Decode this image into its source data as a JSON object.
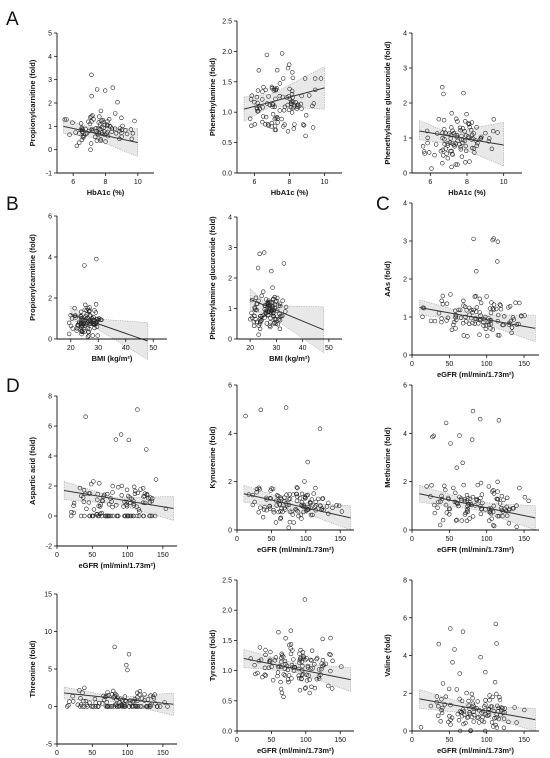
{
  "panel_letters": [
    "A",
    "B",
    "C",
    "D"
  ],
  "chart_data": [
    {
      "type": "scatter",
      "panel": "A",
      "xlabel": "HbA1c (%)",
      "ylabel": "Propionylcarnitine (fold)",
      "xlim": [
        5,
        11
      ],
      "ylim": [
        -1,
        5
      ],
      "xticks": [
        6,
        8,
        10
      ],
      "yticks": [
        -1,
        0,
        1,
        2,
        3,
        4,
        5
      ],
      "tick_labels_x": [
        "6",
        "8",
        "10"
      ],
      "tick_labels_y": [
        "-1",
        "0",
        "1",
        "2",
        "3",
        "4",
        "5"
      ],
      "fit": {
        "x": [
          5.4,
          10.0
        ],
        "y": [
          1.0,
          0.3
        ]
      },
      "band": {
        "x": [
          5.4,
          7,
          10
        ],
        "upper": [
          1.35,
          0.95,
          0.9
        ],
        "lower": [
          0.7,
          0.55,
          -0.3
        ]
      },
      "seed": 11,
      "n": 95,
      "x_range": [
        5.3,
        9.9
      ],
      "y_range": [
        0.0,
        4.3
      ],
      "y_center": 0.75,
      "y_spread": 0.6
    },
    {
      "type": "scatter",
      "panel": "A",
      "xlabel": "HbA1c (%)",
      "ylabel": "Phenethylamine (fold)",
      "xlim": [
        5,
        11
      ],
      "ylim": [
        0,
        2.5
      ],
      "xticks": [
        6,
        8,
        10
      ],
      "yticks": [
        0,
        0.5,
        1.0,
        1.5,
        2.0,
        2.5
      ],
      "tick_labels_x": [
        "6",
        "8",
        "10"
      ],
      "tick_labels_y": [
        "0.0",
        "0.5",
        "1.0",
        "1.5",
        "2.0",
        "2.5"
      ],
      "fit": {
        "x": [
          5.4,
          10.0
        ],
        "y": [
          1.05,
          1.4
        ]
      },
      "band": {
        "x": [
          5.4,
          7,
          10
        ],
        "upper": [
          1.25,
          1.3,
          1.75
        ],
        "lower": [
          0.85,
          1.1,
          1.05
        ]
      },
      "seed": 23,
      "n": 110,
      "x_range": [
        5.3,
        9.9
      ],
      "y_range": [
        0.05,
        2.0
      ],
      "y_center": 1.1,
      "y_spread": 0.45
    },
    {
      "type": "scatter",
      "panel": "A",
      "xlabel": "HbA1c (%)",
      "ylabel": "Phenethylamine glucuronide (fold)",
      "xlim": [
        5,
        11
      ],
      "ylim": [
        0,
        4
      ],
      "xticks": [
        6,
        8,
        10
      ],
      "yticks": [
        0,
        1,
        2,
        3,
        4
      ],
      "tick_labels_x": [
        "6",
        "8",
        "10"
      ],
      "tick_labels_y": [
        "0",
        "1",
        "2",
        "3",
        "4"
      ],
      "fit": {
        "x": [
          5.4,
          10.0
        ],
        "y": [
          1.2,
          0.8
        ]
      },
      "band": {
        "x": [
          5.4,
          7,
          10
        ],
        "upper": [
          1.5,
          1.15,
          1.45
        ],
        "lower": [
          0.95,
          0.85,
          0.2
        ]
      },
      "seed": 37,
      "n": 105,
      "x_range": [
        5.3,
        9.9
      ],
      "y_range": [
        0.1,
        3.5
      ],
      "y_center": 0.9,
      "y_spread": 0.6
    },
    {
      "type": "scatter",
      "panel": "B",
      "xlabel": "BMI (kg/m²)",
      "ylabel": "Propionylcarnitine (fold)",
      "xlim": [
        15,
        55
      ],
      "ylim": [
        0,
        6
      ],
      "xticks": [
        20,
        30,
        40,
        50
      ],
      "yticks": [
        0,
        2,
        4,
        6
      ],
      "tick_labels_x": [
        "20",
        "30",
        "40",
        "50"
      ],
      "tick_labels_y": [
        "0",
        "2",
        "4",
        "6"
      ],
      "fit": {
        "x": [
          20,
          48
        ],
        "y": [
          1.2,
          -0.1
        ]
      },
      "band": {
        "x": [
          20,
          27,
          48
        ],
        "upper": [
          1.6,
          1.0,
          0.8
        ],
        "lower": [
          0.9,
          0.7,
          -1.0
        ]
      },
      "seed": 41,
      "n": 100,
      "x_range": [
        19,
        32
      ],
      "y_range": [
        0.0,
        4.2
      ],
      "y_center": 0.8,
      "y_spread": 0.6
    },
    {
      "type": "scatter",
      "panel": "B",
      "xlabel": "BMI (kg/m²)",
      "ylabel": "Phenethylamine glucuronide (fold)",
      "xlim": [
        15,
        55
      ],
      "ylim": [
        0,
        4
      ],
      "xticks": [
        20,
        30,
        40,
        50
      ],
      "yticks": [
        0,
        1,
        2,
        3,
        4
      ],
      "tick_labels_x": [
        "20",
        "30",
        "40",
        "50"
      ],
      "tick_labels_y": [
        "0",
        "1",
        "2",
        "3",
        "4"
      ],
      "fit": {
        "x": [
          20,
          48
        ],
        "y": [
          1.3,
          0.3
        ]
      },
      "band": {
        "x": [
          20,
          27,
          48
        ],
        "upper": [
          1.65,
          1.1,
          1.05
        ],
        "lower": [
          0.95,
          0.8,
          -0.45
        ]
      },
      "seed": 53,
      "n": 110,
      "x_range": [
        19,
        35
      ],
      "y_range": [
        0.1,
        3.4
      ],
      "y_center": 0.9,
      "y_spread": 0.6
    },
    {
      "type": "scatter",
      "panel": "C",
      "xlabel": "eGFR (ml/min/1.73m²)",
      "ylabel": "AAs (fold)",
      "xlim": [
        0,
        170
      ],
      "ylim": [
        0,
        4
      ],
      "xticks": [
        0,
        50,
        100,
        150
      ],
      "yticks": [
        0,
        1,
        2,
        3,
        4
      ],
      "tick_labels_x": [
        "0",
        "50",
        "100",
        "150"
      ],
      "tick_labels_y": [
        "0",
        "1",
        "2",
        "3",
        "4"
      ],
      "fit": {
        "x": [
          10,
          165
        ],
        "y": [
          1.25,
          0.7
        ]
      },
      "band": {
        "x": [
          10,
          85,
          165
        ],
        "upper": [
          1.45,
          1.05,
          1.05
        ],
        "lower": [
          1.05,
          0.9,
          0.35
        ]
      },
      "seed": 61,
      "n": 115,
      "x_range": [
        8,
        160
      ],
      "y_range": [
        0.15,
        3.2
      ],
      "y_center": 1.0,
      "y_spread": 0.5
    },
    {
      "type": "scatter",
      "panel": "D",
      "xlabel": "eGFR (ml/min/1.73m²)",
      "ylabel": "Aspartic acid (fold)",
      "xlim": [
        0,
        170
      ],
      "ylim": [
        -2,
        8
      ],
      "xticks": [
        0,
        50,
        100,
        150
      ],
      "yticks": [
        -2,
        0,
        2,
        4,
        6,
        8
      ],
      "tick_labels_x": [
        "0",
        "50",
        "100",
        "150"
      ],
      "tick_labels_y": [
        "-2",
        "0",
        "2",
        "4",
        "6",
        "8"
      ],
      "fit": {
        "x": [
          10,
          165
        ],
        "y": [
          1.7,
          0.5
        ]
      },
      "band": {
        "x": [
          10,
          85,
          165
        ],
        "upper": [
          2.3,
          1.2,
          1.3
        ],
        "lower": [
          1.1,
          0.8,
          -0.3
        ]
      },
      "seed": 71,
      "n": 125,
      "x_range": [
        8,
        160
      ],
      "y_range": [
        0.0,
        7.4
      ],
      "y_center": 0.9,
      "y_spread": 1.2,
      "zero_fraction": 0.3
    },
    {
      "type": "scatter",
      "panel": "D",
      "xlabel": "eGFR (ml/min/1.73m²)",
      "ylabel": "Kynurenine (fold)",
      "xlim": [
        0,
        170
      ],
      "ylim": [
        0,
        6
      ],
      "xticks": [
        0,
        50,
        100,
        150
      ],
      "yticks": [
        0,
        2,
        4,
        6
      ],
      "tick_labels_x": [
        "0",
        "50",
        "100",
        "150"
      ],
      "tick_labels_y": [
        "0",
        "2",
        "4",
        "6"
      ],
      "fit": {
        "x": [
          10,
          165
        ],
        "y": [
          1.5,
          0.5
        ]
      },
      "band": {
        "x": [
          10,
          85,
          165
        ],
        "upper": [
          1.85,
          1.15,
          1.0
        ],
        "lower": [
          1.15,
          0.85,
          0.0
        ]
      },
      "seed": 83,
      "n": 125,
      "x_range": [
        8,
        160
      ],
      "y_range": [
        0.0,
        5.1
      ],
      "y_center": 1.0,
      "y_spread": 0.7
    },
    {
      "type": "scatter",
      "panel": "D",
      "xlabel": "eGFR (ml/min/1.73m²)",
      "ylabel": "Methionine (fold)",
      "xlim": [
        0,
        170
      ],
      "ylim": [
        0,
        6
      ],
      "xticks": [
        0,
        50,
        100,
        150
      ],
      "yticks": [
        0,
        2,
        4,
        6
      ],
      "tick_labels_x": [
        "0",
        "50",
        "100",
        "150"
      ],
      "tick_labels_y": [
        "0",
        "2",
        "4",
        "6"
      ],
      "fit": {
        "x": [
          10,
          165
        ],
        "y": [
          1.5,
          0.5
        ]
      },
      "band": {
        "x": [
          10,
          85,
          165
        ],
        "upper": [
          1.85,
          1.15,
          1.0
        ],
        "lower": [
          1.15,
          0.85,
          0.0
        ]
      },
      "seed": 97,
      "n": 125,
      "x_range": [
        8,
        160
      ],
      "y_range": [
        0.0,
        5.1
      ],
      "y_center": 1.0,
      "y_spread": 0.7
    },
    {
      "type": "scatter",
      "panel": "D",
      "xlabel": "eGFR (ml/min/1.73m²)",
      "ylabel": "Threonine (fold)",
      "xlim": [
        0,
        170
      ],
      "ylim": [
        -5,
        15
      ],
      "xticks": [
        0,
        50,
        100,
        150
      ],
      "yticks": [
        -5,
        0,
        5,
        10,
        15
      ],
      "tick_labels_x": [
        "0",
        "50",
        "100",
        "150"
      ],
      "tick_labels_y": [
        "-5",
        "0",
        "5",
        "10",
        "15"
      ],
      "fit": {
        "x": [
          10,
          165
        ],
        "y": [
          1.8,
          0.3
        ]
      },
      "band": {
        "x": [
          10,
          85,
          165
        ],
        "upper": [
          2.6,
          1.2,
          1.8
        ],
        "lower": [
          1.0,
          0.6,
          -1.2
        ]
      },
      "seed": 103,
      "n": 125,
      "x_range": [
        8,
        160
      ],
      "y_range": [
        0.0,
        11.5
      ],
      "y_center": 0.8,
      "y_spread": 1.2,
      "zero_fraction": 0.35
    },
    {
      "type": "scatter",
      "panel": "D",
      "xlabel": "eGFR (ml/min/1.73m²)",
      "ylabel": "Tyrosine (fold)",
      "xlim": [
        0,
        170
      ],
      "ylim": [
        0,
        2.5
      ],
      "xticks": [
        0,
        50,
        100,
        150
      ],
      "yticks": [
        0,
        0.5,
        1.0,
        1.5,
        2.0,
        2.5
      ],
      "tick_labels_x": [
        "0",
        "50",
        "100",
        "150"
      ],
      "tick_labels_y": [
        "0.0",
        "0.5",
        "1.0",
        "1.5",
        "2.0",
        "2.5"
      ],
      "fit": {
        "x": [
          10,
          165
        ],
        "y": [
          1.2,
          0.85
        ]
      },
      "band": {
        "x": [
          10,
          85,
          165
        ],
        "upper": [
          1.35,
          1.12,
          1.05
        ],
        "lower": [
          1.05,
          0.98,
          0.65
        ]
      },
      "seed": 113,
      "n": 125,
      "x_range": [
        8,
        160
      ],
      "y_range": [
        0.15,
        2.25
      ],
      "y_center": 1.05,
      "y_spread": 0.4
    },
    {
      "type": "scatter",
      "panel": "D",
      "xlabel": "eGFR (ml/min/1.73m²)",
      "ylabel": "Valine (fold)",
      "xlim": [
        0,
        170
      ],
      "ylim": [
        0,
        8
      ],
      "xticks": [
        0,
        50,
        100,
        150
      ],
      "yticks": [
        0,
        2,
        4,
        6,
        8
      ],
      "tick_labels_x": [
        "0",
        "50",
        "100",
        "150"
      ],
      "tick_labels_y": [
        "0",
        "2",
        "4",
        "6",
        "8"
      ],
      "fit": {
        "x": [
          10,
          165
        ],
        "y": [
          1.7,
          0.6
        ]
      },
      "band": {
        "x": [
          10,
          85,
          165
        ],
        "upper": [
          2.2,
          1.3,
          1.2
        ],
        "lower": [
          1.2,
          0.9,
          0.0
        ]
      },
      "seed": 127,
      "n": 120,
      "x_range": [
        8,
        160
      ],
      "y_range": [
        0.0,
        6.0
      ],
      "y_center": 1.0,
      "y_spread": 0.9
    }
  ]
}
